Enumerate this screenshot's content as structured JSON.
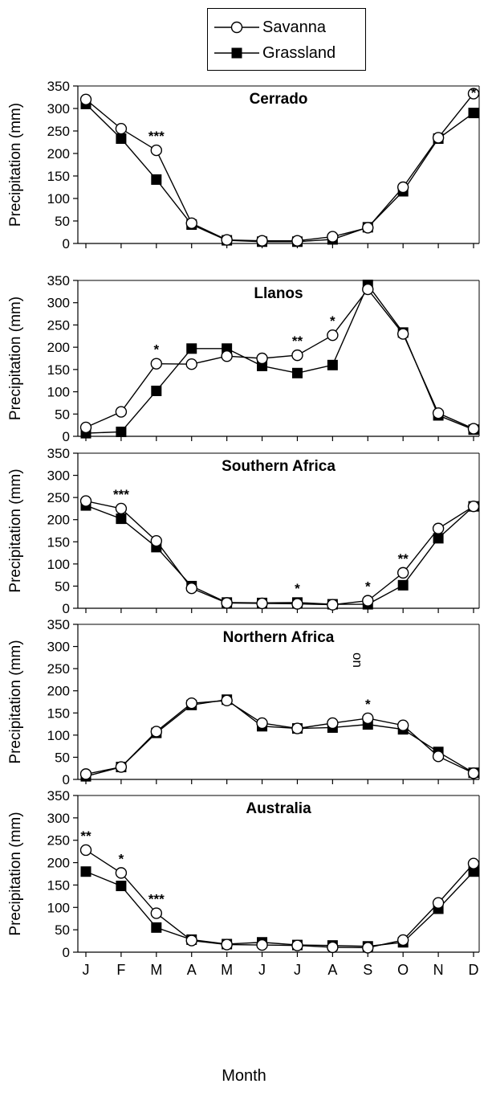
{
  "legend": {
    "savanna": "Savanna",
    "grassland": "Grassland"
  },
  "xlabel": "Month",
  "stray_text": "on",
  "colors": {
    "savanna_fill": "#ffffff",
    "grassland_fill": "#000000",
    "line": "#000000"
  },
  "chart_data": [
    {
      "type": "line",
      "title": "Cerrado",
      "ylabel": "Precipitation (mm)",
      "ylim": [
        0,
        350
      ],
      "yticks": [
        0,
        50,
        100,
        150,
        200,
        250,
        300,
        350
      ],
      "categories": [
        "J",
        "F",
        "M",
        "A",
        "M",
        "J",
        "J",
        "A",
        "S",
        "O",
        "N",
        "D"
      ],
      "series": [
        {
          "name": "Savanna",
          "marker": "open-circle",
          "values": [
            320,
            255,
            207,
            45,
            8,
            6,
            6,
            15,
            35,
            125,
            235,
            333
          ]
        },
        {
          "name": "Grassland",
          "marker": "filled-square",
          "values": [
            310,
            233,
            142,
            42,
            7,
            4,
            4,
            9,
            36,
            116,
            233,
            290
          ]
        }
      ],
      "annotations": [
        {
          "category_index": 2,
          "text": "***"
        },
        {
          "category_index": 11,
          "text": "*"
        }
      ]
    },
    {
      "type": "line",
      "title": "Llanos",
      "ylabel": "Precipitation (mm)",
      "ylim": [
        0,
        350
      ],
      "yticks": [
        0,
        50,
        100,
        150,
        200,
        250,
        300,
        350
      ],
      "categories": [
        "J",
        "F",
        "M",
        "A",
        "M",
        "J",
        "J",
        "A",
        "S",
        "O",
        "N",
        "D"
      ],
      "series": [
        {
          "name": "Savanna",
          "marker": "open-circle",
          "values": [
            20,
            55,
            163,
            162,
            180,
            175,
            182,
            227,
            330,
            230,
            52,
            17
          ]
        },
        {
          "name": "Grassland",
          "marker": "filled-square",
          "values": [
            7,
            10,
            102,
            197,
            197,
            158,
            142,
            160,
            340,
            233,
            47,
            15
          ]
        }
      ],
      "annotations": [
        {
          "category_index": 2,
          "text": "*"
        },
        {
          "category_index": 6,
          "text": "**"
        },
        {
          "category_index": 7,
          "text": "*"
        }
      ]
    },
    {
      "type": "line",
      "title": "Southern Africa",
      "ylabel": "Precipitation (mm)",
      "ylim": [
        0,
        350
      ],
      "yticks": [
        0,
        50,
        100,
        150,
        200,
        250,
        300,
        350
      ],
      "categories": [
        "J",
        "F",
        "M",
        "A",
        "M",
        "J",
        "J",
        "A",
        "S",
        "O",
        "N",
        "D"
      ],
      "series": [
        {
          "name": "Savanna",
          "marker": "open-circle",
          "values": [
            242,
            225,
            152,
            45,
            12,
            11,
            10,
            8,
            17,
            80,
            180,
            230
          ]
        },
        {
          "name": "Grassland",
          "marker": "filled-square",
          "values": [
            232,
            202,
            138,
            50,
            13,
            12,
            13,
            9,
            9,
            52,
            158,
            230
          ]
        }
      ],
      "annotations": [
        {
          "category_index": 1,
          "text": "***"
        },
        {
          "category_index": 6,
          "text": "*"
        },
        {
          "category_index": 8,
          "text": "*"
        },
        {
          "category_index": 9,
          "text": "**"
        }
      ]
    },
    {
      "type": "line",
      "title": "Northern Africa",
      "ylabel": "Precipitation (mm)",
      "ylim": [
        0,
        350
      ],
      "yticks": [
        0,
        50,
        100,
        150,
        200,
        250,
        300,
        350
      ],
      "categories": [
        "J",
        "F",
        "M",
        "A",
        "M",
        "J",
        "J",
        "A",
        "S",
        "O",
        "N",
        "D"
      ],
      "series": [
        {
          "name": "Savanna",
          "marker": "open-circle",
          "values": [
            12,
            28,
            108,
            172,
            178,
            127,
            115,
            127,
            138,
            122,
            52,
            14
          ]
        },
        {
          "name": "Grassland",
          "marker": "filled-square",
          "values": [
            7,
            28,
            105,
            168,
            180,
            120,
            115,
            117,
            124,
            113,
            62,
            15
          ]
        }
      ],
      "annotations": [
        {
          "category_index": 8,
          "text": "*"
        }
      ]
    },
    {
      "type": "line",
      "title": "Australia",
      "ylabel": "Precipitation (mm)",
      "ylim": [
        0,
        350
      ],
      "yticks": [
        0,
        50,
        100,
        150,
        200,
        250,
        300,
        350
      ],
      "categories": [
        "J",
        "F",
        "M",
        "A",
        "M",
        "J",
        "J",
        "A",
        "S",
        "O",
        "N",
        "D"
      ],
      "series": [
        {
          "name": "Savanna",
          "marker": "open-circle",
          "values": [
            228,
            177,
            87,
            26,
            17,
            16,
            15,
            11,
            10,
            27,
            110,
            198
          ]
        },
        {
          "name": "Grassland",
          "marker": "filled-square",
          "values": [
            180,
            148,
            55,
            28,
            18,
            22,
            16,
            15,
            13,
            22,
            97,
            180
          ]
        }
      ],
      "annotations": [
        {
          "category_index": 0,
          "text": "**"
        },
        {
          "category_index": 1,
          "text": "*"
        },
        {
          "category_index": 2,
          "text": "***"
        }
      ]
    }
  ]
}
